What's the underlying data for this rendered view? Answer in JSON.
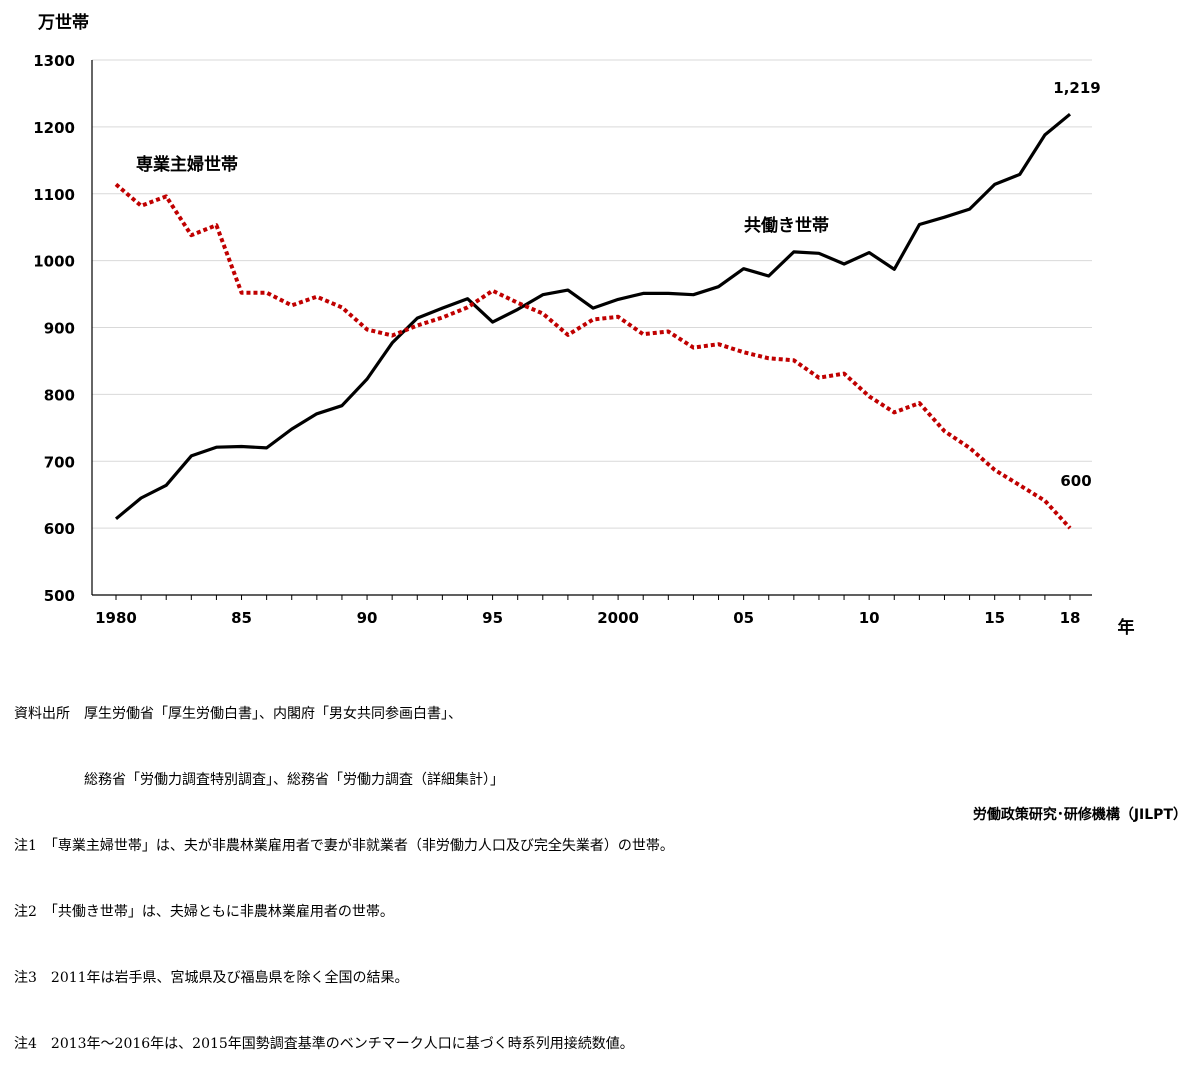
{
  "chart_data": {
    "type": "line",
    "unit_label": "万世帯",
    "x_axis_unit": "年",
    "ylim": [
      500,
      1300
    ],
    "yticks": [
      500,
      600,
      700,
      800,
      900,
      1000,
      1100,
      1200,
      1300
    ],
    "xlim": [
      1980,
      2018
    ],
    "xticks": [
      {
        "year": 1980,
        "label": "1980"
      },
      {
        "year": 1985,
        "label": "85"
      },
      {
        "year": 1990,
        "label": "90"
      },
      {
        "year": 1995,
        "label": "95"
      },
      {
        "year": 2000,
        "label": "2000"
      },
      {
        "year": 2005,
        "label": "05"
      },
      {
        "year": 2010,
        "label": "10"
      },
      {
        "year": 2015,
        "label": "15"
      },
      {
        "year": 2018,
        "label": "18"
      }
    ],
    "grid": true,
    "x": [
      1980,
      1981,
      1982,
      1983,
      1984,
      1985,
      1986,
      1987,
      1988,
      1989,
      1990,
      1991,
      1992,
      1993,
      1994,
      1995,
      1996,
      1997,
      1998,
      1999,
      2000,
      2001,
      2002,
      2003,
      2004,
      2005,
      2006,
      2007,
      2008,
      2009,
      2010,
      2011,
      2012,
      2013,
      2014,
      2015,
      2016,
      2017,
      2018
    ],
    "series": [
      {
        "name": "共働き世帯",
        "color": "#000000",
        "style": "solid",
        "values": [
          614,
          645,
          664,
          708,
          721,
          722,
          720,
          748,
          771,
          783,
          823,
          877,
          914,
          929,
          943,
          908,
          927,
          949,
          956,
          929,
          942,
          951,
          951,
          949,
          961,
          988,
          977,
          1013,
          1011,
          995,
          1012,
          987,
          1054,
          1065,
          1077,
          1114,
          1129,
          1188,
          1219
        ],
        "end_label": "1,219"
      },
      {
        "name": "専業主婦世帯",
        "color": "#c00000",
        "style": "dotted",
        "values": [
          1114,
          1082,
          1096,
          1038,
          1053,
          952,
          952,
          933,
          946,
          930,
          897,
          888,
          903,
          915,
          930,
          955,
          937,
          921,
          889,
          912,
          916,
          890,
          894,
          870,
          875,
          863,
          854,
          851,
          825,
          831,
          797,
          773,
          787,
          745,
          720,
          687,
          664,
          641,
          600
        ],
        "end_label": "600"
      }
    ]
  },
  "notes": [
    "資料出所　厚生労働省「厚生労働白書」、内閣府「男女共同参画白書」、",
    "　　　　　総務省「労働力調査特別調査」、総務省「労働力調査（詳細集計）」",
    "注1　「専業主婦世帯」は、夫が非農林業雇用者で妻が非就業者（非労働力人口及び完全失業者）の世帯。",
    "注2　「共働き世帯」は、夫婦ともに非農林業雇用者の世帯。",
    "注3　2011年は岩手県、宮城県及び福島県を除く全国の結果。",
    "注4　2013年～2016年は、2015年国勢調査基準のベンチマーク人口に基づく時系列用接続数値。"
  ],
  "footer_credit": "労働政策研究･研修機構（JILPT）"
}
